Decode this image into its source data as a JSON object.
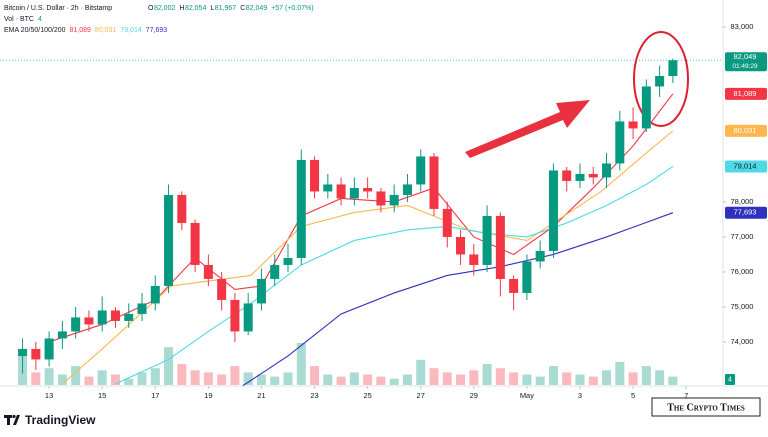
{
  "header": {
    "symbol": "Bitcoin / U.S. Dollar · 2h · Bitstamp",
    "ohlc": [
      {
        "label": "O",
        "value": "82,002"
      },
      {
        "label": "H",
        "value": "82,054"
      },
      {
        "label": "L",
        "value": "81,967"
      },
      {
        "label": "C",
        "value": "82,049"
      }
    ],
    "change": "+57 (+0.07%)",
    "volume_label": "Vol · BTC",
    "volume_value": "4",
    "ema_label": "EMA 20/50/100/200"
  },
  "chart_data": {
    "type": "candlestick",
    "x": [
      12,
      12.5,
      13,
      13.5,
      14,
      14.5,
      15,
      15.5,
      16,
      16.5,
      17,
      17.5,
      18,
      18.5,
      19,
      19.5,
      20,
      20.5,
      21,
      21.5,
      22,
      22.5,
      23,
      23.5,
      24,
      24.5,
      25,
      25.5,
      26,
      26.5,
      27,
      27.5,
      28,
      28.5,
      29,
      29.5,
      30,
      30.5,
      31,
      31.5,
      32,
      32.5,
      33,
      33.5,
      34,
      34.5,
      35,
      35.5,
      36,
      36.5
    ],
    "open": [
      73600,
      73800,
      73500,
      74100,
      74300,
      74700,
      74500,
      74900,
      74600,
      74800,
      75100,
      75600,
      78200,
      77400,
      76200,
      75800,
      75200,
      74300,
      75100,
      75800,
      76200,
      76400,
      79200,
      78300,
      78500,
      78100,
      78400,
      78300,
      77900,
      78200,
      78500,
      79300,
      77800,
      77000,
      76500,
      76200,
      77600,
      75800,
      75400,
      76300,
      76600,
      78900,
      78600,
      78800,
      78700,
      79100,
      80300,
      80100,
      81300,
      81600
    ],
    "high": [
      74100,
      74000,
      74300,
      74600,
      75000,
      74900,
      75300,
      75000,
      75100,
      75400,
      75900,
      78500,
      78300,
      77500,
      76500,
      76000,
      75400,
      75400,
      76100,
      76500,
      76800,
      79500,
      79300,
      78800,
      78700,
      78700,
      78700,
      78400,
      78500,
      78800,
      79500,
      79400,
      78000,
      77200,
      76800,
      77900,
      77700,
      75900,
      76500,
      76900,
      79100,
      79000,
      79100,
      79000,
      79400,
      80600,
      80700,
      81500,
      81900,
      82100
    ],
    "low": [
      73100,
      73200,
      73300,
      73800,
      74100,
      74300,
      74300,
      74400,
      74400,
      74600,
      74900,
      75400,
      77200,
      76000,
      75600,
      74900,
      74000,
      74200,
      74900,
      75600,
      76000,
      76200,
      78100,
      78100,
      77900,
      77900,
      78100,
      77700,
      77700,
      78000,
      78300,
      77600,
      76700,
      76200,
      75900,
      76000,
      75300,
      74900,
      75200,
      76100,
      76400,
      78300,
      78400,
      78500,
      78400,
      78900,
      79800,
      80000,
      81000,
      81400
    ],
    "close": [
      73800,
      73500,
      74100,
      74300,
      74700,
      74500,
      74900,
      74600,
      74800,
      75100,
      75600,
      78200,
      77400,
      76200,
      75800,
      75200,
      74300,
      75100,
      75800,
      76200,
      76400,
      79200,
      78300,
      78500,
      78100,
      78400,
      78300,
      77900,
      78200,
      78500,
      79300,
      77800,
      77000,
      76500,
      76200,
      77600,
      75800,
      75400,
      76300,
      76600,
      78900,
      78600,
      78800,
      78700,
      79100,
      80300,
      80100,
      81300,
      81600,
      82049
    ],
    "volume": [
      14,
      6,
      8,
      5,
      9,
      4,
      7,
      5,
      3,
      6,
      8,
      18,
      10,
      7,
      6,
      5,
      9,
      6,
      5,
      4,
      6,
      20,
      9,
      5,
      4,
      6,
      5,
      4,
      3,
      5,
      12,
      8,
      6,
      5,
      7,
      10,
      8,
      6,
      5,
      4,
      9,
      6,
      5,
      4,
      7,
      11,
      6,
      9,
      7,
      4
    ],
    "up_color": "#089981",
    "down_color": "#f23645",
    "emas": [
      {
        "color": "#f23645",
        "x": [
          13,
          15,
          17,
          18.5,
          20,
          21,
          22.5,
          24,
          26,
          27.5,
          29,
          30.5,
          32,
          33.5,
          35,
          36.5
        ],
        "values": [
          74000,
          74500,
          75200,
          76400,
          75500,
          75600,
          77600,
          78100,
          78000,
          78400,
          77000,
          76500,
          77300,
          78400,
          79600,
          81089
        ],
        "value_label": "81,089"
      },
      {
        "color": "#ffb74d",
        "x": [
          13.5,
          15,
          17.6,
          20.6,
          22.5,
          24.5,
          26.5,
          28.8,
          31,
          33.8,
          35.5,
          36.5
        ],
        "values": [
          72800,
          73800,
          75600,
          75900,
          77300,
          77700,
          77900,
          77200,
          76900,
          78300,
          79400,
          80031
        ],
        "value_label": "80,031"
      },
      {
        "color": "#4dd9e8",
        "x": [
          15.5,
          17.5,
          19,
          20.6,
          22.5,
          24.5,
          26.5,
          28,
          29.5,
          31,
          32.5,
          34,
          35.5,
          36.5
        ],
        "values": [
          72800,
          73500,
          74300,
          75100,
          76200,
          76900,
          77200,
          77300,
          77100,
          77000,
          77400,
          77900,
          78500,
          79014
        ],
        "value_label": "79,014"
      },
      {
        "color": "#2f2fc0",
        "x": [
          20.3,
          22,
          24,
          26,
          28,
          30,
          32,
          34,
          36.5
        ],
        "values": [
          72750,
          73600,
          74800,
          75400,
          75900,
          76150,
          76500,
          77000,
          77693
        ],
        "value_label": "77,693"
      }
    ],
    "last_price_label": "82,049",
    "countdown": "01:49:29",
    "xlim": [
      11.15,
      38.35
    ],
    "xticks": [
      13,
      15,
      17,
      19,
      21,
      23,
      25,
      27,
      29,
      {
        "value": 31,
        "label": "May"
      },
      {
        "value": 33,
        "label": "3"
      },
      {
        "value": 35,
        "label": "5"
      },
      {
        "value": 37,
        "label": "7"
      }
    ],
    "ylim": [
      72770,
      83770
    ],
    "yticks": [
      {
        "value": 83000,
        "label": "83,000"
      },
      {
        "value": 78000,
        "label": "78,000"
      },
      {
        "value": 77000,
        "label": "77,000"
      },
      {
        "value": 76000,
        "label": "76,000"
      },
      {
        "value": 75000,
        "label": "75,000"
      },
      {
        "value": 74000,
        "label": "74,000"
      }
    ]
  },
  "footer": {
    "brand": "TradingView",
    "watermark": "The Crypto Times"
  }
}
